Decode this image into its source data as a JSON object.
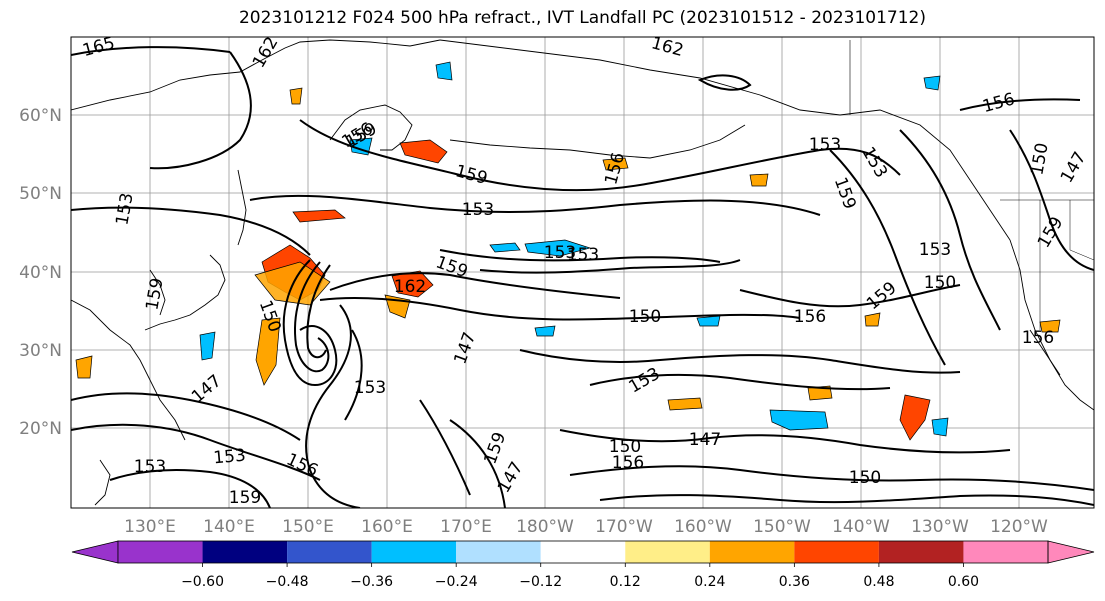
{
  "title": "2023101212 F024 500 hPa refract., IVT Landfall PC (2023101512 - 2023101712)",
  "lat_labels": [
    "60°N",
    "50°N",
    "40°N",
    "30°N",
    "20°N"
  ],
  "lon_labels": [
    "130°E",
    "140°E",
    "150°E",
    "160°E",
    "170°E",
    "180°W",
    "170°W",
    "160°W",
    "150°W",
    "140°W",
    "130°W",
    "120°W"
  ],
  "colorbar": {
    "colors": [
      "#9933cc",
      "#000080",
      "#3355cc",
      "#00bfff",
      "#b0e0ff",
      "#ffffff",
      "#ffee88",
      "#ffa500",
      "#ff4500",
      "#b22222",
      "#ff88bb"
    ],
    "tick_labels": [
      "−0.60",
      "−0.48",
      "−0.36",
      "−0.24",
      "−0.12",
      "0.12",
      "0.24",
      "0.36",
      "0.48",
      "0.60"
    ]
  },
  "contour_labels": [
    "165",
    "162",
    "162",
    "159",
    "159",
    "156",
    "153",
    "153",
    "153",
    "159",
    "156",
    "153",
    "150",
    "159",
    "153",
    "153",
    "159",
    "156",
    "153",
    "150",
    "159",
    "156",
    "150",
    "147",
    "153",
    "156",
    "159",
    "147",
    "150",
    "162",
    "147",
    "153",
    "156",
    "159",
    "147",
    "153",
    "150",
    "153",
    "147",
    "150",
    "156",
    "159"
  ],
  "colors": {
    "contour": "#000000",
    "grid": "#999999",
    "coast": "#000000",
    "axis_label": "#7f7f7f"
  }
}
